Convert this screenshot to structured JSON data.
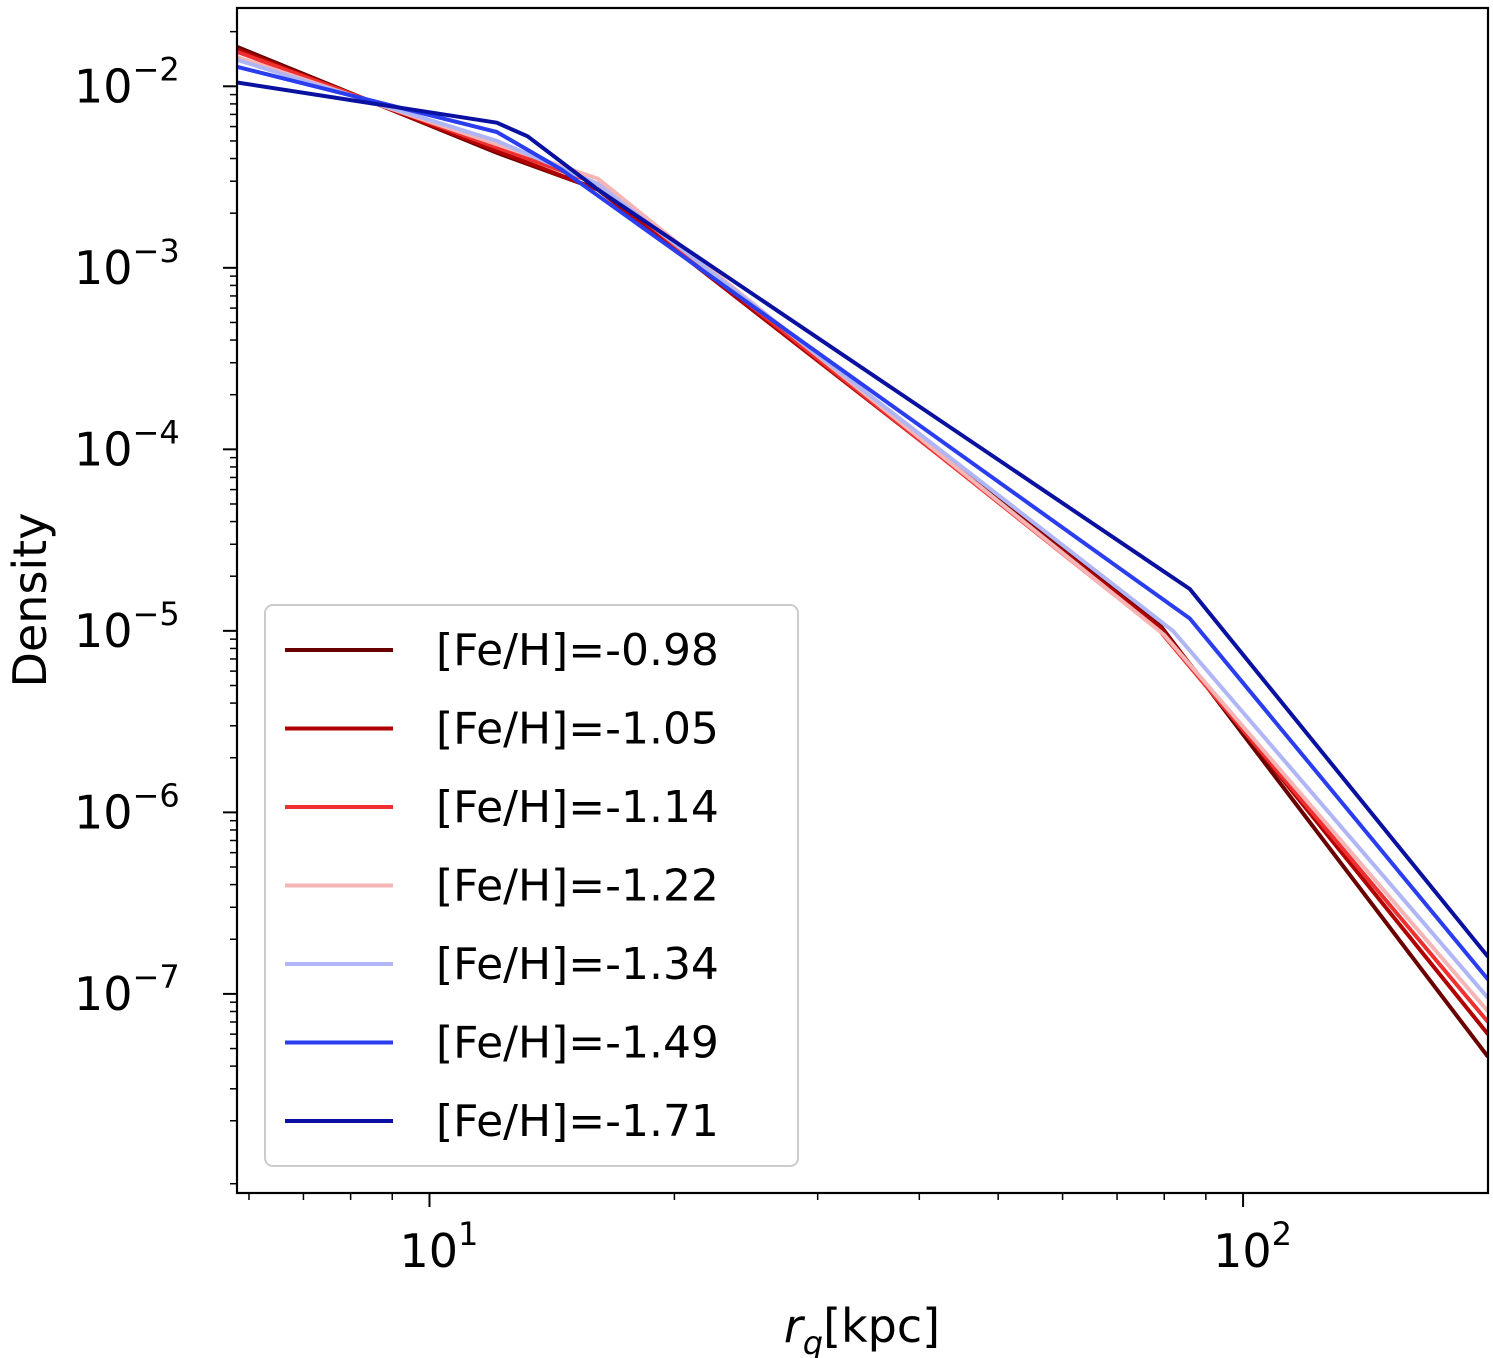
{
  "chart_data": {
    "type": "line",
    "xlabel": "r_q[kpc]",
    "xlabel_parts": {
      "var": "r",
      "sub": "q",
      "unit": "[kpc]"
    },
    "ylabel": "Density",
    "xscale": "log",
    "yscale": "log",
    "xlim": [
      5.8,
      200
    ],
    "ylim": [
      8e-09,
      0.027
    ],
    "x_major_ticks": [
      10,
      100
    ],
    "x_tick_labels": [
      {
        "base": "10",
        "exp": "1"
      },
      {
        "base": "10",
        "exp": "2"
      }
    ],
    "y_major_ticks": [
      0.01,
      0.001,
      0.0001,
      1e-05,
      1e-06,
      1e-07
    ],
    "y_tick_labels": [
      {
        "base": "10",
        "exp": "−2"
      },
      {
        "base": "10",
        "exp": "−3"
      },
      {
        "base": "10",
        "exp": "−4"
      },
      {
        "base": "10",
        "exp": "−5"
      },
      {
        "base": "10",
        "exp": "−6"
      },
      {
        "base": "10",
        "exp": "−7"
      }
    ],
    "grid": false,
    "legend_position": "lower-left",
    "series": [
      {
        "name": "[Fe/H]=-0.98",
        "color": "#6b0000",
        "x": [
          5.8,
          12.1,
          16.1,
          79.0,
          200
        ],
        "y": [
          0.0165,
          0.0043,
          0.0027,
          1.08e-05,
          4.5e-08
        ]
      },
      {
        "name": "[Fe/H]=-1.05",
        "color": "#b00000",
        "x": [
          5.8,
          12.1,
          16.1,
          79.0,
          200
        ],
        "y": [
          0.016,
          0.0044,
          0.0027,
          1.05e-05,
          6e-08
        ]
      },
      {
        "name": "[Fe/H]=-1.14",
        "color": "#f03030",
        "x": [
          5.8,
          12.1,
          16.1,
          79.0,
          200
        ],
        "y": [
          0.0155,
          0.0046,
          0.0029,
          1e-05,
          7e-08
        ]
      },
      {
        "name": "[Fe/H]=-1.22",
        "color": "#f5b5b5",
        "x": [
          5.8,
          12.1,
          16.1,
          80.0,
          200
        ],
        "y": [
          0.0145,
          0.0048,
          0.0031,
          9.5e-06,
          8e-08
        ]
      },
      {
        "name": "[Fe/H]=-1.34",
        "color": "#b0b5f5",
        "x": [
          5.8,
          12.1,
          16.1,
          82.0,
          200
        ],
        "y": [
          0.014,
          0.005,
          0.0029,
          1e-05,
          9.5e-08
        ]
      },
      {
        "name": "[Fe/H]=-1.49",
        "color": "#2a3ef0",
        "x": [
          5.8,
          12.1,
          14.5,
          86.0,
          200
        ],
        "y": [
          0.0128,
          0.0056,
          0.0035,
          1.17e-05,
          1.2e-07
        ]
      },
      {
        "name": "[Fe/H]=-1.71",
        "color": "#0a10a0",
        "x": [
          5.8,
          12.1,
          13.2,
          16.1,
          86.0,
          200
        ],
        "y": [
          0.0105,
          0.0063,
          0.0053,
          0.0027,
          1.7e-05,
          1.6e-07
        ]
      }
    ]
  }
}
